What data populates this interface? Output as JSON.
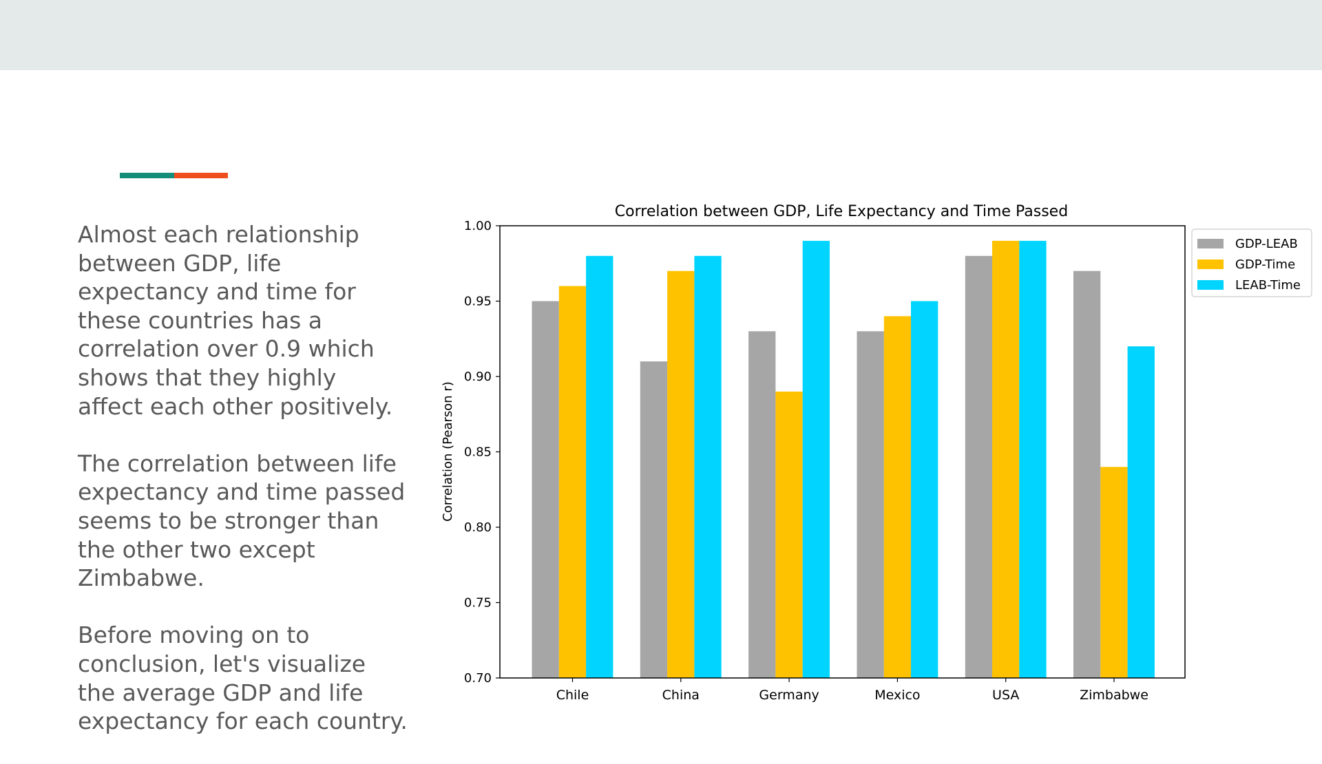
{
  "slide": {
    "paragraphs": [
      "Almost each relationship between GDP, life expectancy and time for these countries has a correlation over 0.9 which shows that they highly affect each other positively.",
      "The correlation between life expectancy and time passed seems to be stronger than the other two except Zimbabwe.",
      "Before moving on to conclusion, let's visualize the average GDP and life expectancy for each country."
    ],
    "colors": {
      "band": "#e4eaea",
      "accent_teal": "#148d7a",
      "accent_orange": "#ef4e1c",
      "text": "#595959"
    }
  },
  "chart_data": {
    "type": "bar",
    "title": "Correlation between GDP, Life Expectancy and Time Passed",
    "xlabel": "",
    "ylabel": "Correlation (Pearson r)",
    "ylim": [
      0.7,
      1.0
    ],
    "yticks": [
      "0.70",
      "0.75",
      "0.80",
      "0.85",
      "0.90",
      "0.95",
      "1.00"
    ],
    "categories": [
      "Chile",
      "China",
      "Germany",
      "Mexico",
      "USA",
      "Zimbabwe"
    ],
    "series": [
      {
        "name": "GDP-LEAB",
        "color": "#a6a6a6",
        "values": [
          0.95,
          0.91,
          0.93,
          0.93,
          0.98,
          0.97
        ]
      },
      {
        "name": "GDP-Time",
        "color": "#ffc200",
        "values": [
          0.96,
          0.97,
          0.89,
          0.94,
          0.99,
          0.84
        ]
      },
      {
        "name": "LEAB-Time",
        "color": "#00d4ff",
        "values": [
          0.98,
          0.98,
          0.99,
          0.95,
          0.99,
          0.92
        ]
      }
    ],
    "grid": false,
    "legend": "outside-right-top"
  }
}
